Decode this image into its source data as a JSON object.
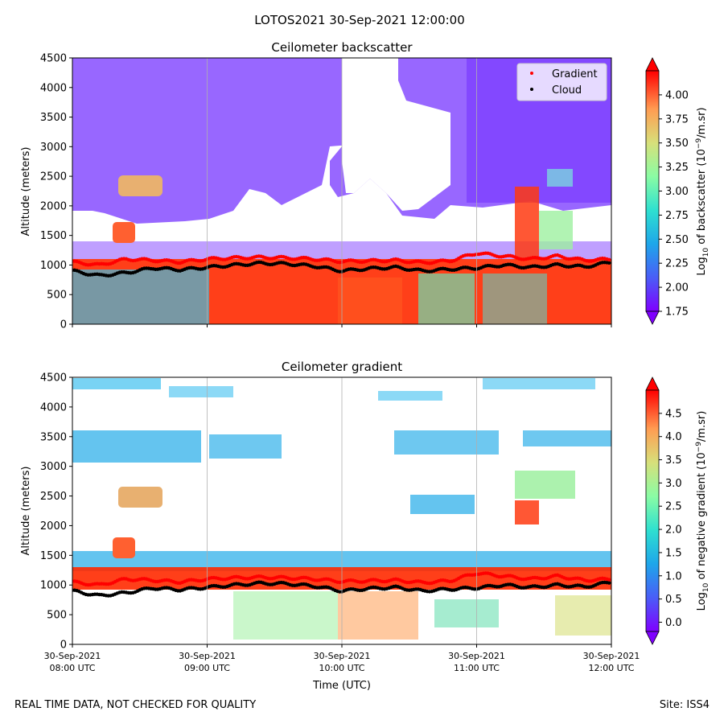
{
  "figure": {
    "suptitle": "LOTOS2021 30-Sep-2021 12:00:00",
    "footer_left": "REAL TIME DATA, NOT CHECKED FOR QUALITY",
    "footer_right": "Site: ISS4"
  },
  "chart_data": [
    {
      "type": "heatmap",
      "title": "Ceilometer backscatter",
      "xlabel": "",
      "ylabel": "Altitude (meters)",
      "ylim": [
        0,
        4500
      ],
      "yticks": [
        "0",
        "500",
        "1000",
        "1500",
        "2000",
        "2500",
        "3000",
        "3500",
        "4000",
        "4500"
      ],
      "yvalues": [
        0,
        500,
        1000,
        1500,
        2000,
        2500,
        3000,
        3500,
        4000,
        4500
      ],
      "xticks": [
        {
          "line1": "",
          "line2": "",
          "hour": 8
        },
        {
          "line1": "",
          "line2": "",
          "hour": 9
        },
        {
          "line1": "",
          "line2": "",
          "hour": 10
        },
        {
          "line1": "",
          "line2": "",
          "hour": 11
        },
        {
          "line1": "",
          "line2": "",
          "hour": 12
        }
      ],
      "colorbar": {
        "label": "Log10 of backscatter (10^-9/m.sr)",
        "label_main": "Log",
        "label_sub": "10",
        "label_rest": " of backscatter (10",
        "label_sup": "−9",
        "label_end": "/m.sr)",
        "range": [
          1.75,
          4.25
        ],
        "ticks": [
          "1.75",
          "2.00",
          "2.25",
          "2.50",
          "2.75",
          "3.00",
          "3.25",
          "3.50",
          "3.75",
          "4.00"
        ],
        "tick_values": [
          1.75,
          2.0,
          2.25,
          2.5,
          2.75,
          3.0,
          3.25,
          3.5,
          3.75,
          4.0
        ]
      },
      "legend": {
        "position": "top-right",
        "entries": [
          {
            "label": "Gradient",
            "color": "#ff0000"
          },
          {
            "label": "Cloud",
            "color": "#000000"
          }
        ]
      },
      "series": [
        {
          "name": "Cloud",
          "x_hours": [
            8.0,
            8.2,
            8.4,
            8.6,
            8.8,
            9.0,
            9.2,
            9.4,
            9.6,
            9.8,
            10.0,
            10.2,
            10.4,
            10.6,
            10.8,
            11.0,
            11.2,
            11.4,
            11.6,
            11.8,
            12.0
          ],
          "y_m": [
            900,
            820,
            870,
            950,
            920,
            960,
            1000,
            1030,
            1020,
            980,
            900,
            940,
            960,
            900,
            930,
            950,
            1000,
            960,
            1000,
            970,
            1050
          ]
        },
        {
          "name": "Gradient",
          "x_hours": [
            8.0,
            8.2,
            8.4,
            8.6,
            8.8,
            9.0,
            9.2,
            9.4,
            9.6,
            9.8,
            10.0,
            10.2,
            10.4,
            10.6,
            10.8,
            11.0,
            11.2,
            11.4,
            11.6,
            11.8,
            12.0
          ],
          "y_m": [
            1050,
            1000,
            1100,
            1080,
            1050,
            1100,
            1120,
            1130,
            1120,
            1100,
            1060,
            1070,
            1080,
            1040,
            1070,
            1200,
            1150,
            1100,
            1150,
            1080,
            1100
          ]
        }
      ]
    },
    {
      "type": "heatmap",
      "title": "Ceilometer gradient",
      "xlabel": "Time (UTC)",
      "ylabel": "Altitude (meters)",
      "ylim": [
        0,
        4500
      ],
      "yticks": [
        "0",
        "500",
        "1000",
        "1500",
        "2000",
        "2500",
        "3000",
        "3500",
        "4000",
        "4500"
      ],
      "yvalues": [
        0,
        500,
        1000,
        1500,
        2000,
        2500,
        3000,
        3500,
        4000,
        4500
      ],
      "xticks": [
        {
          "line1": "30-Sep-2021",
          "line2": "08:00 UTC",
          "hour": 8
        },
        {
          "line1": "30-Sep-2021",
          "line2": "09:00 UTC",
          "hour": 9
        },
        {
          "line1": "30-Sep-2021",
          "line2": "10:00 UTC",
          "hour": 10
        },
        {
          "line1": "30-Sep-2021",
          "line2": "11:00 UTC",
          "hour": 11
        },
        {
          "line1": "30-Sep-2021",
          "line2": "12:00 UTC",
          "hour": 12
        }
      ],
      "colorbar": {
        "label": "Log10 of negative gradient (10^-9/m.sr)",
        "label_main": "Log",
        "label_sub": "10",
        "label_rest": " of negative gradient (10",
        "label_sup": "−9",
        "label_end": "/m.sr)",
        "range": [
          -0.2,
          5.0
        ],
        "ticks": [
          "0.0",
          "0.5",
          "1.0",
          "1.5",
          "2.0",
          "2.5",
          "3.0",
          "3.5",
          "4.0",
          "4.5"
        ],
        "tick_values": [
          0.0,
          0.5,
          1.0,
          1.5,
          2.0,
          2.5,
          3.0,
          3.5,
          4.0,
          4.5
        ]
      },
      "series": [
        {
          "name": "Cloud",
          "x_hours": [
            8.0,
            8.2,
            8.4,
            8.6,
            8.8,
            9.0,
            9.2,
            9.4,
            9.6,
            9.8,
            10.0,
            10.2,
            10.4,
            10.6,
            10.8,
            11.0,
            11.2,
            11.4,
            11.6,
            11.8,
            12.0
          ],
          "y_m": [
            900,
            820,
            870,
            950,
            920,
            960,
            1000,
            1030,
            1020,
            980,
            900,
            940,
            960,
            900,
            930,
            950,
            1000,
            960,
            1000,
            970,
            1050
          ]
        },
        {
          "name": "Gradient",
          "x_hours": [
            8.0,
            8.2,
            8.4,
            8.6,
            8.8,
            9.0,
            9.2,
            9.4,
            9.6,
            9.8,
            10.0,
            10.2,
            10.4,
            10.6,
            10.8,
            11.0,
            11.2,
            11.4,
            11.6,
            11.8,
            12.0
          ],
          "y_m": [
            1050,
            1000,
            1100,
            1080,
            1050,
            1100,
            1120,
            1130,
            1120,
            1100,
            1060,
            1070,
            1080,
            1040,
            1070,
            1200,
            1150,
            1100,
            1150,
            1080,
            1100
          ]
        }
      ]
    }
  ]
}
